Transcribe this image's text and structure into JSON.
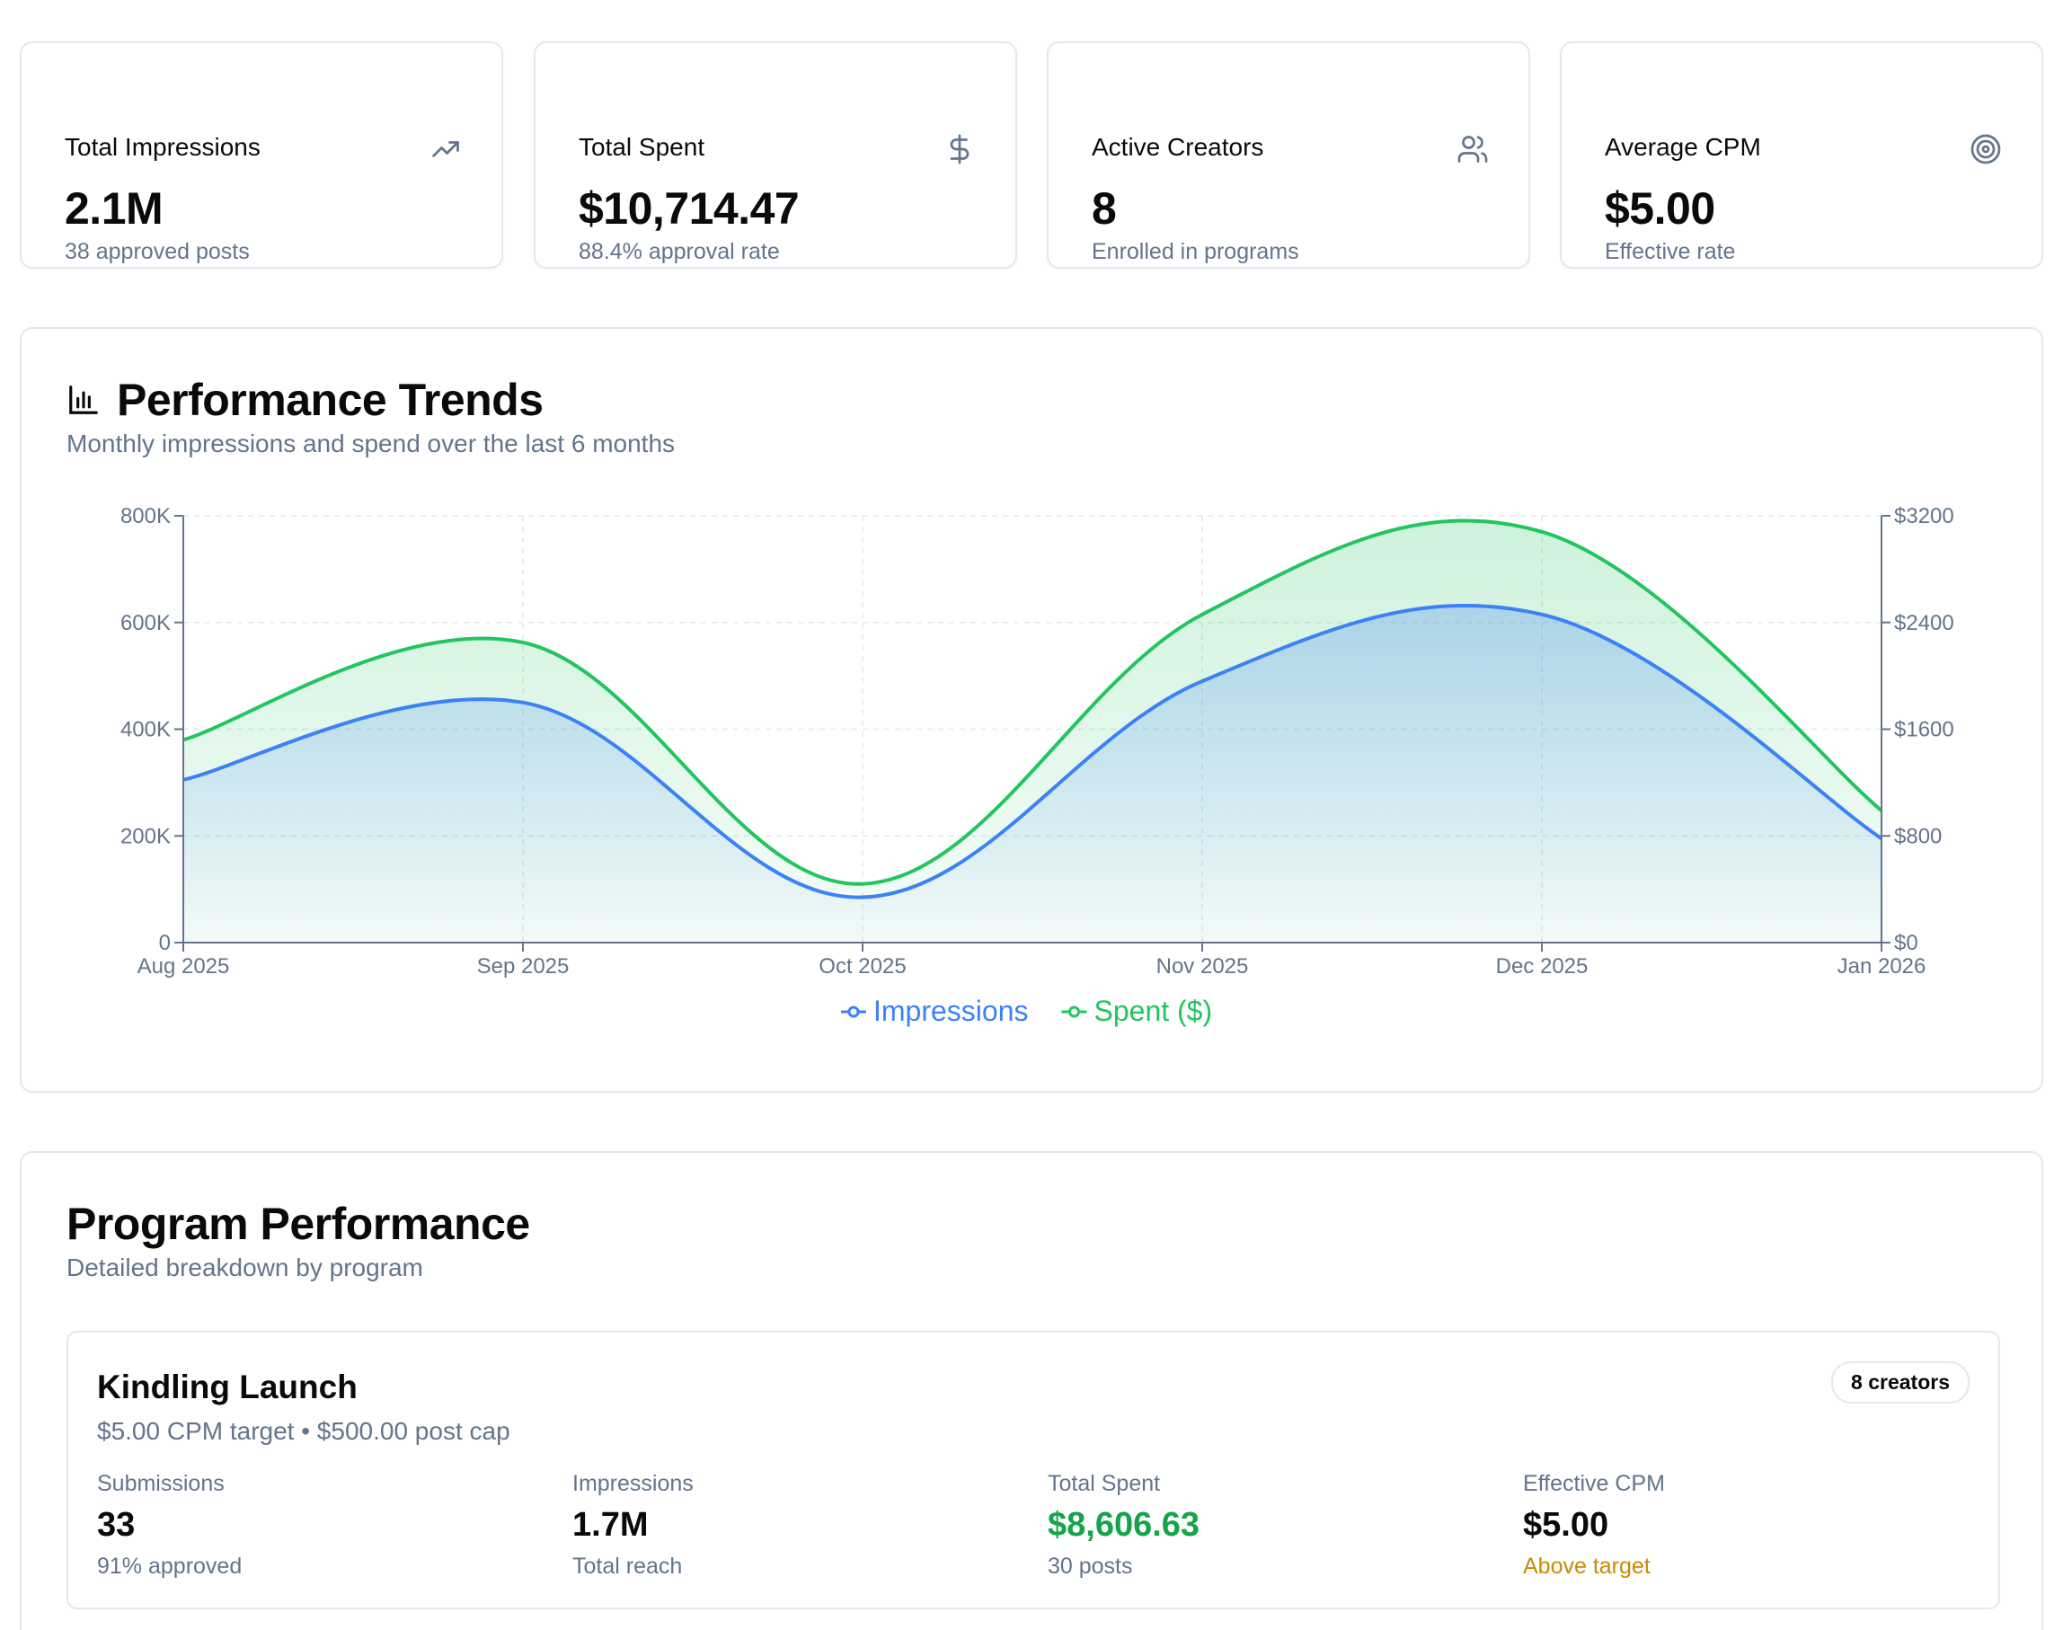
{
  "stats": [
    {
      "title": "Total Impressions",
      "value": "2.1M",
      "sub": "38 approved posts",
      "icon": "trending-up-icon"
    },
    {
      "title": "Total Spent",
      "value": "$10,714.47",
      "sub": "88.4% approval rate",
      "icon": "dollar-icon"
    },
    {
      "title": "Active Creators",
      "value": "8",
      "sub": "Enrolled in programs",
      "icon": "users-icon"
    },
    {
      "title": "Average CPM",
      "value": "$5.00",
      "sub": "Effective rate",
      "icon": "target-icon"
    }
  ],
  "trends": {
    "title": "Performance Trends",
    "subtitle": "Monthly impressions and spend over the last 6 months"
  },
  "chart_data": {
    "type": "area",
    "title": "",
    "x": [
      "Aug 2025",
      "Sep 2025",
      "Oct 2025",
      "Nov 2025",
      "Dec 2025",
      "Jan 2026"
    ],
    "series": [
      {
        "name": "Impressions",
        "axis": "left",
        "color": "#3b82f6",
        "values": [
          305000,
          450000,
          85000,
          490000,
          615000,
          195000
        ]
      },
      {
        "name": "Spent ($)",
        "axis": "right",
        "color": "#22c55e",
        "values": [
          1520,
          2250,
          440,
          2460,
          3080,
          990
        ]
      }
    ],
    "y_left": {
      "ticks": [
        "0",
        "200K",
        "400K",
        "600K",
        "800K"
      ],
      "ylim": [
        0,
        800000
      ]
    },
    "y_right": {
      "ticks": [
        "$0",
        "$800",
        "$1600",
        "$2400",
        "$3200"
      ],
      "ylim": [
        0,
        3200
      ]
    },
    "grid": true,
    "legend": "bottom-center"
  },
  "program_section": {
    "title": "Program Performance",
    "subtitle": "Detailed breakdown by program"
  },
  "programs": [
    {
      "name": "Kindling Launch",
      "meta": "$5.00 CPM target • $500.00 post cap",
      "badge": "8 creators",
      "metrics": [
        {
          "label": "Submissions",
          "value": "33",
          "sub": "91% approved"
        },
        {
          "label": "Impressions",
          "value": "1.7M",
          "sub": "Total reach"
        },
        {
          "label": "Total Spent",
          "value": "$8,606.63",
          "sub": "30 posts"
        },
        {
          "label": "Effective CPM",
          "value": "$5.00",
          "sub": "Above target"
        }
      ]
    }
  ]
}
